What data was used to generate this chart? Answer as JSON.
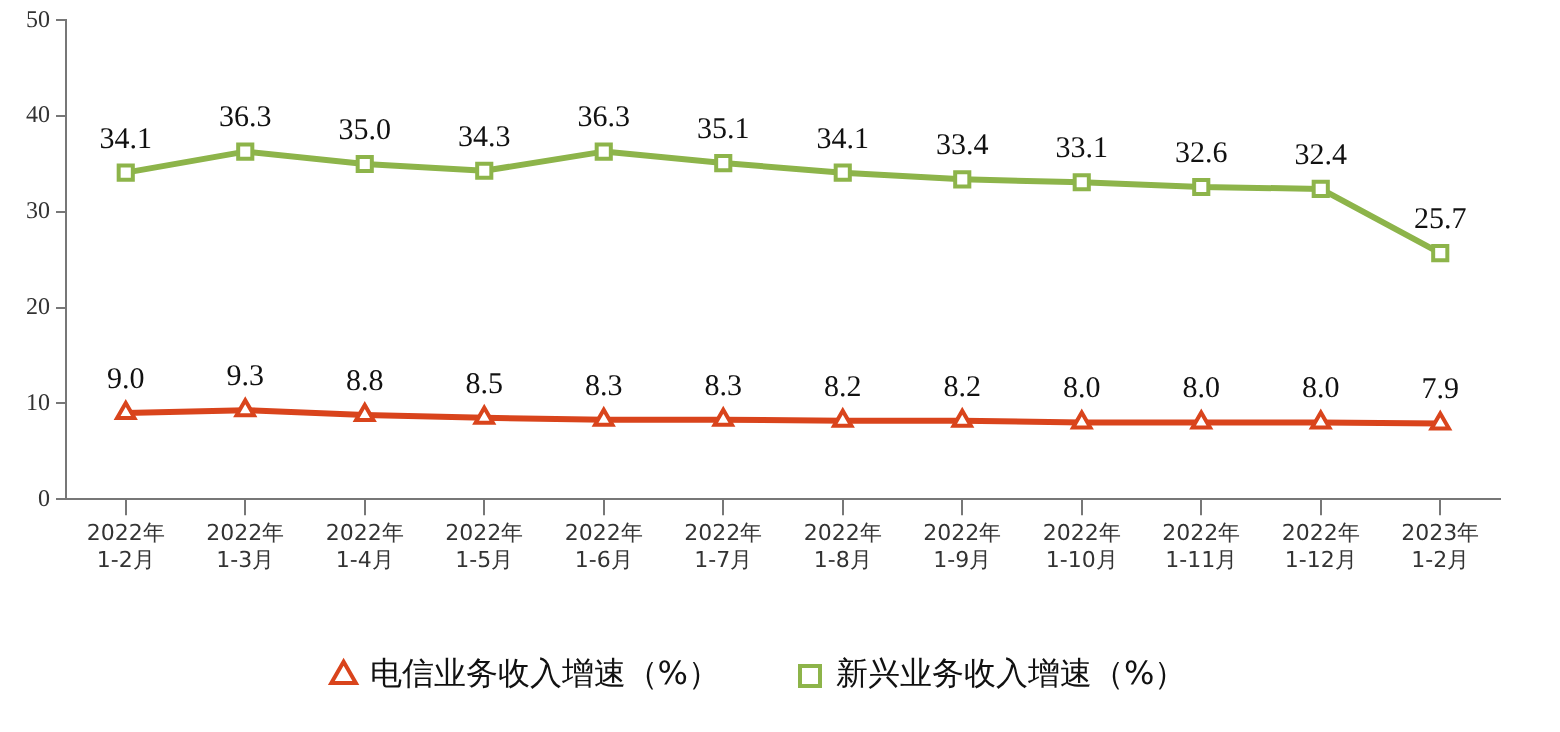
{
  "chart_data": {
    "type": "line",
    "categories": [
      "2022年\n1-2月",
      "2022年\n1-3月",
      "2022年\n1-4月",
      "2022年\n1-5月",
      "2022年\n1-6月",
      "2022年\n1-7月",
      "2022年\n1-8月",
      "2022年\n1-9月",
      "2022年\n1-10月",
      "2022年\n1-11月",
      "2022年\n1-12月",
      "2023年\n1-2月"
    ],
    "series": [
      {
        "name": "电信业务收入增速（%）",
        "color": "#d9441c",
        "marker": "triangle",
        "values": [
          9.0,
          9.3,
          8.8,
          8.5,
          8.3,
          8.3,
          8.2,
          8.2,
          8.0,
          8.0,
          8.0,
          7.9
        ],
        "value_labels": [
          "9.0",
          "9.3",
          "8.8",
          "8.5",
          "8.3",
          "8.3",
          "8.2",
          "8.2",
          "8.0",
          "8.0",
          "8.0",
          "7.9"
        ]
      },
      {
        "name": "新兴业务收入增速（%）",
        "color": "#8db44a",
        "marker": "square",
        "values": [
          34.1,
          36.3,
          35.0,
          34.3,
          36.3,
          35.1,
          34.1,
          33.4,
          33.1,
          32.6,
          32.4,
          25.7
        ],
        "value_labels": [
          "34.1",
          "36.3",
          "35.0",
          "34.3",
          "36.3",
          "35.1",
          "34.1",
          "33.4",
          "33.1",
          "32.6",
          "32.4",
          "25.7"
        ]
      }
    ],
    "ylim": [
      0,
      50
    ],
    "yticks": [
      0,
      10,
      20,
      30,
      40,
      50
    ],
    "grid": false,
    "legend": "bottom"
  }
}
